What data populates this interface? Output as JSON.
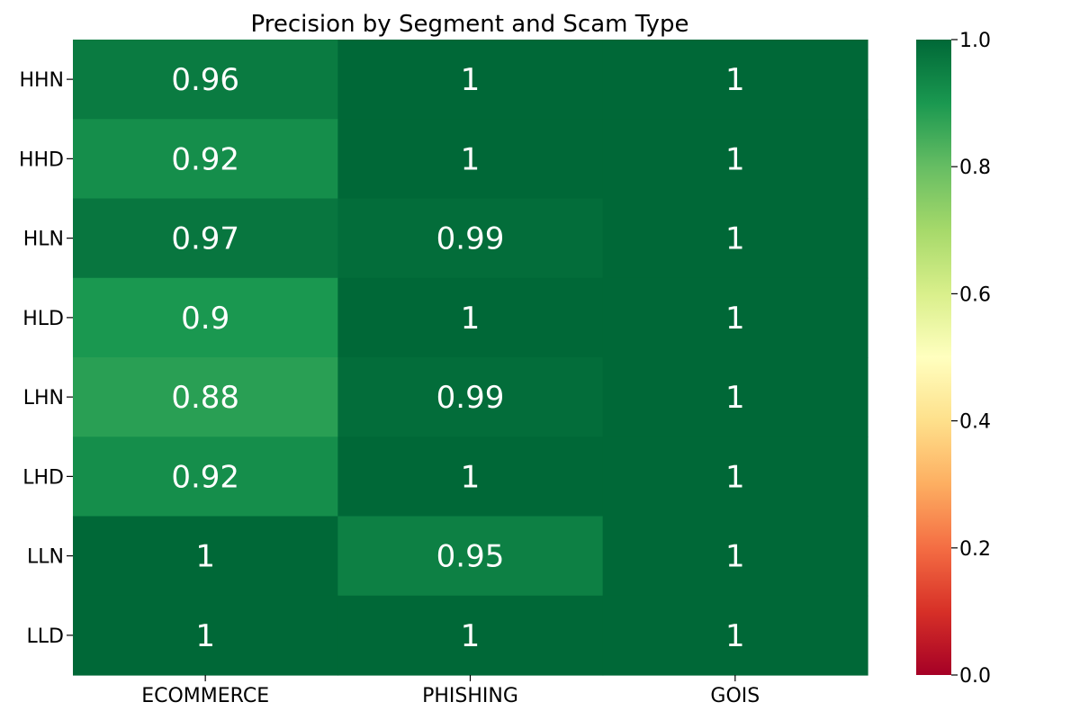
{
  "chart_data": {
    "type": "heatmap",
    "title": "Precision by Segment and Scam Type",
    "xlabel": "",
    "ylabel": "",
    "columns": [
      "ECOMMERCE",
      "PHISHING",
      "GOIS"
    ],
    "rows": [
      "HHN",
      "HHD",
      "HLN",
      "HLD",
      "LHN",
      "LHD",
      "LLN",
      "LLD"
    ],
    "values": [
      [
        0.96,
        1,
        1
      ],
      [
        0.92,
        1,
        1
      ],
      [
        0.97,
        0.99,
        1
      ],
      [
        0.9,
        1,
        1
      ],
      [
        0.88,
        0.99,
        1
      ],
      [
        0.92,
        1,
        1
      ],
      [
        1,
        0.95,
        1
      ],
      [
        1,
        1,
        1
      ]
    ],
    "value_labels": [
      [
        "0.96",
        "1",
        "1"
      ],
      [
        "0.92",
        "1",
        "1"
      ],
      [
        "0.97",
        "0.99",
        "1"
      ],
      [
        "0.9",
        "1",
        "1"
      ],
      [
        "0.88",
        "0.99",
        "1"
      ],
      [
        "0.92",
        "1",
        "1"
      ],
      [
        "1",
        "0.95",
        "1"
      ],
      [
        "1",
        "1",
        "1"
      ]
    ],
    "colormap": "RdYlGn",
    "vmin": 0.0,
    "vmax": 1.0,
    "colorbar_ticks": [
      "0.0",
      "0.2",
      "0.4",
      "0.6",
      "0.8",
      "1.0"
    ],
    "grid": false
  }
}
